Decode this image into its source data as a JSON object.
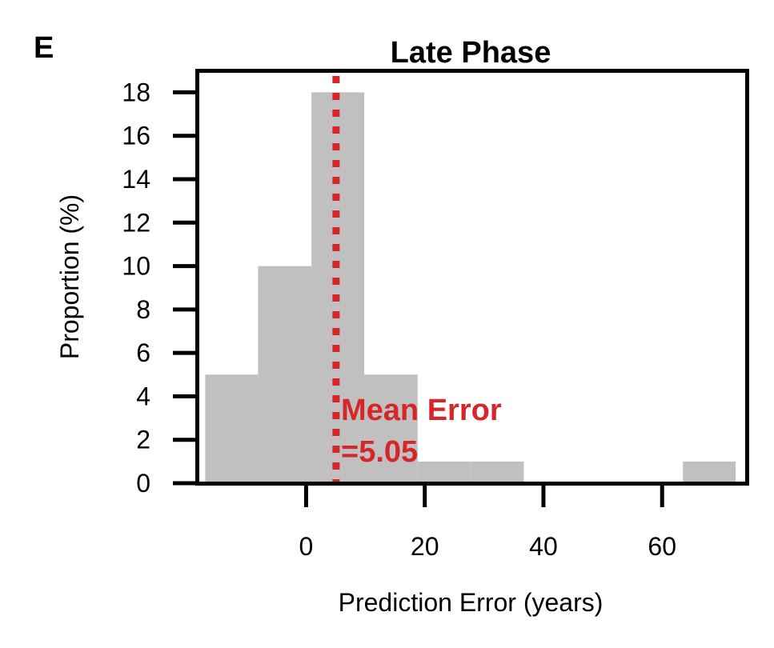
{
  "panel_label": "E",
  "chart_data": {
    "type": "bar",
    "title": "Late Phase",
    "xlabel": "Prediction Error (years)",
    "ylabel": "Proportion (%)",
    "xlim": [
      -18,
      74
    ],
    "ylim": [
      0,
      18.9
    ],
    "x_ticks": [
      0,
      20,
      40,
      60
    ],
    "y_ticks": [
      0,
      2,
      4,
      6,
      8,
      10,
      12,
      14,
      16,
      18
    ],
    "bins": [
      {
        "x0": -17,
        "x1": -8.1,
        "value": 5
      },
      {
        "x0": -8.1,
        "x1": 0.9,
        "value": 10
      },
      {
        "x0": 0.9,
        "x1": 9.8,
        "value": 18
      },
      {
        "x0": 9.8,
        "x1": 18.8,
        "value": 5
      },
      {
        "x0": 18.8,
        "x1": 27.7,
        "value": 1
      },
      {
        "x0": 27.7,
        "x1": 36.7,
        "value": 1
      },
      {
        "x0": 63.5,
        "x1": 72.4,
        "value": 1
      }
    ],
    "bar_color": "#c0c0c0",
    "mean_line": {
      "x": 5.05,
      "color": "#d62728",
      "label_line1": "Mean Error",
      "label_line2": "=5.05"
    },
    "grid": false,
    "legend": "none"
  }
}
